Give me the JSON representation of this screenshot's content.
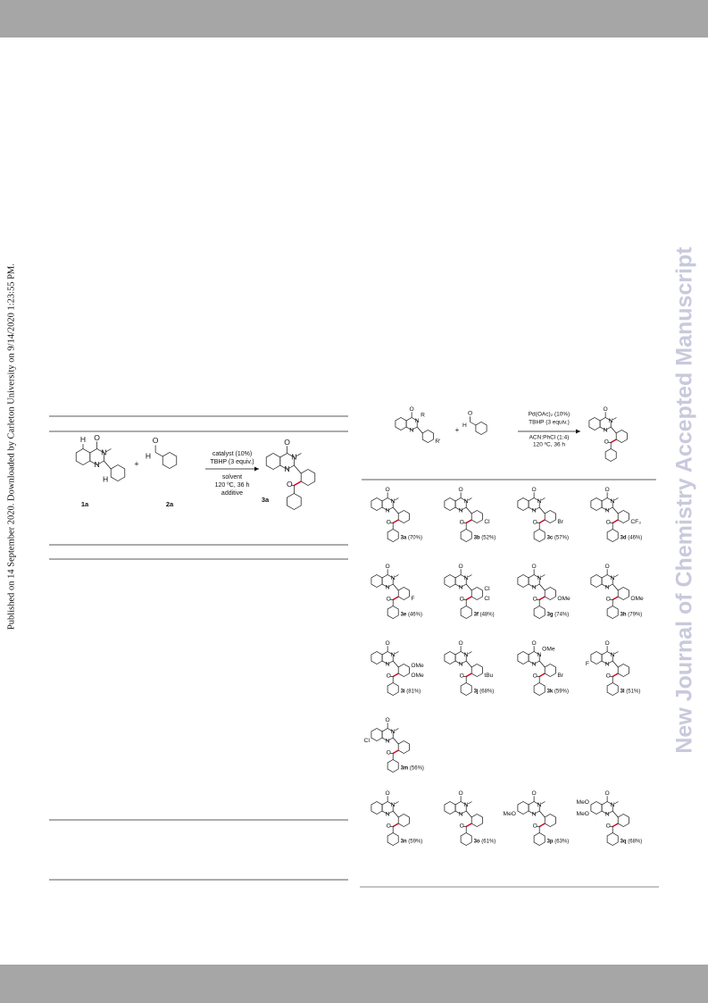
{
  "side_note": "Published on 14 September 2020. Downloaded by Carleton University on 9/14/2020 1:23:55 PM.",
  "watermark": "New Journal of Chemistry Accepted Manuscript",
  "atom_labels": {
    "o": "O",
    "n": "N",
    "h": "H"
  },
  "table_scheme": {
    "plus": "+",
    "labels": [
      "1a",
      "2a",
      "3a"
    ],
    "conditions_above": [
      "catalyst (10%)",
      "TBHP (3 equiv.)"
    ],
    "conditions_below": [
      "solvent",
      "120 ºC, 36 h",
      "additive"
    ]
  },
  "scope_scheme": {
    "plus": "+",
    "r": "R",
    "r_prime": "R'",
    "conditions_above": [
      "Pd(OAc)₂ (10%)",
      "TBHP (3 equiv.)"
    ],
    "conditions_below": [
      "ACN:PhCl (1:4)",
      "120 ºC, 36 h"
    ],
    "compounds": [
      {
        "label": "3a",
        "yield": "(70%)",
        "aryl": [],
        "core": []
      },
      {
        "label": "3b",
        "yield": "(52%)",
        "aryl": [
          "Cl"
        ],
        "core": []
      },
      {
        "label": "3c",
        "yield": "(57%)",
        "aryl": [
          "Br"
        ],
        "core": []
      },
      {
        "label": "3d",
        "yield": "(46%)",
        "aryl": [
          "CF₃"
        ],
        "core": []
      },
      {
        "label": "3e",
        "yield": "(46%)",
        "aryl": [
          "F"
        ],
        "core": []
      },
      {
        "label": "3f",
        "yield": "(48%)",
        "aryl": [
          "Cl",
          "Cl"
        ],
        "core": []
      },
      {
        "label": "3g",
        "yield": "(74%)",
        "aryl": [
          "OMe"
        ],
        "core": []
      },
      {
        "label": "3h",
        "yield": "(79%)",
        "aryl": [
          "OMe"
        ],
        "core": []
      },
      {
        "label": "3i",
        "yield": "(81%)",
        "aryl": [
          "OMe",
          "OMe"
        ],
        "core": []
      },
      {
        "label": "3j",
        "yield": "(68%)",
        "aryl": [
          "tBu"
        ],
        "core": []
      },
      {
        "label": "3k",
        "yield": "(59%)",
        "aryl": [
          "Br"
        ],
        "core": [],
        "n_sub": "OMe"
      },
      {
        "label": "3l",
        "yield": "(51%)",
        "aryl": [],
        "core": [
          "F"
        ]
      },
      {
        "label": "3m",
        "yield": "(56%)",
        "aryl": [],
        "core": [
          "Cl"
        ]
      },
      {
        "label": "3n",
        "yield": "(59%)",
        "aryl": [],
        "core": []
      },
      {
        "label": "3o",
        "yield": "(61%)",
        "aryl": [],
        "core": []
      },
      {
        "label": "3p",
        "yield": "(63%)",
        "aryl": [],
        "core": [
          "MeO"
        ]
      },
      {
        "label": "3q",
        "yield": "(68%)",
        "aryl": [],
        "core": [
          "MeO",
          "MeO"
        ]
      }
    ]
  }
}
